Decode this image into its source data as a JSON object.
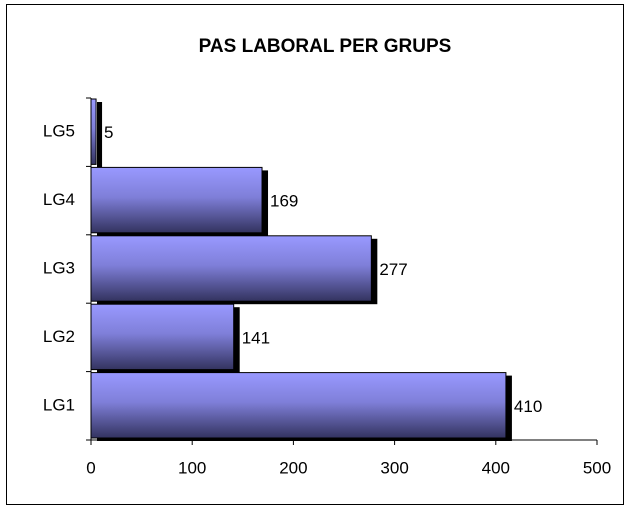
{
  "chart_data": {
    "type": "hbar",
    "title": "PAS LABORAL PER GRUPS",
    "categories": [
      "LG1",
      "LG2",
      "LG3",
      "LG4",
      "LG5"
    ],
    "values": [
      410,
      141,
      277,
      169,
      5
    ],
    "color": "#9999ff",
    "xlim": [
      0,
      500
    ],
    "xticks": [
      0,
      100,
      200,
      300,
      400,
      500
    ]
  }
}
